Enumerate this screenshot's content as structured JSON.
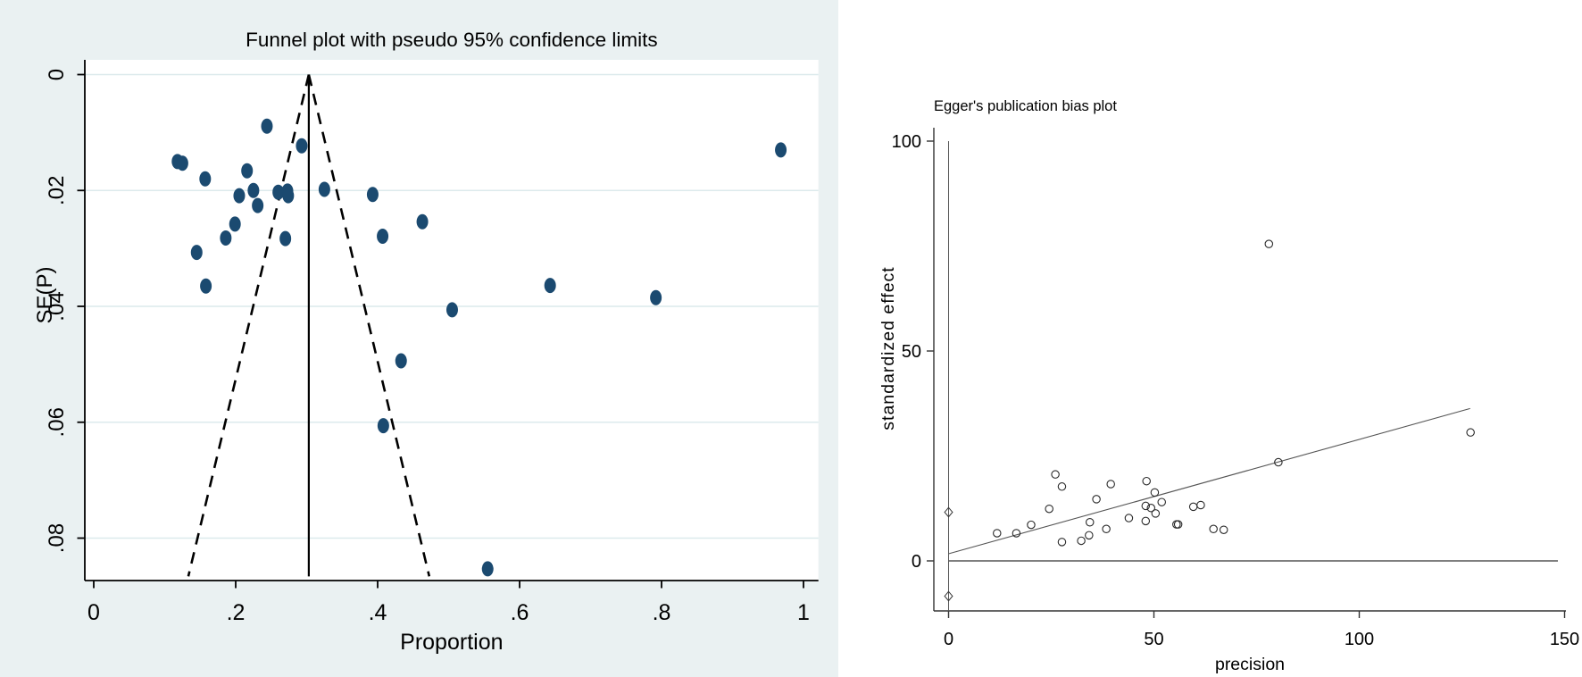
{
  "colors": {
    "panel_bg": "#eaf1f2",
    "plot_bg": "#ffffff",
    "gridline": "#dceaec",
    "marker_fill": "#1b4a70",
    "axis_black": "#000000",
    "spine_gray": "#333333",
    "line_gray": "#555555"
  },
  "chart_data": [
    {
      "id": "funnel",
      "type": "scatter",
      "title": "Funnel plot with pseudo 95% confidence limits",
      "xlabel": "Proportion",
      "ylabel": "SE(P)",
      "x_ticks": [
        0,
        0.2,
        0.4,
        0.6,
        0.8,
        1
      ],
      "x_tick_labels": [
        "0",
        ".2",
        ".4",
        ".6",
        ".8",
        "1"
      ],
      "y_ticks": [
        0,
        0.02,
        0.04,
        0.06,
        0.08
      ],
      "y_tick_labels": [
        "0",
        ".02",
        ".04",
        ".06",
        ".08"
      ],
      "xlim": [
        0,
        1.02
      ],
      "ylim_top_to_bottom": [
        0,
        0.0873
      ],
      "y_axis_reversed": true,
      "grid": true,
      "center_line_x": 0.303,
      "pseudo_ci_multiplier": 1.96,
      "funnel_se_max": 0.0866,
      "points": [
        [
          0.118,
          0.015
        ],
        [
          0.125,
          0.0153
        ],
        [
          0.157,
          0.018
        ],
        [
          0.216,
          0.0166
        ],
        [
          0.205,
          0.0209
        ],
        [
          0.225,
          0.02
        ],
        [
          0.231,
          0.0226
        ],
        [
          0.26,
          0.0203
        ],
        [
          0.273,
          0.0201
        ],
        [
          0.274,
          0.0209
        ],
        [
          0.325,
          0.0198
        ],
        [
          0.199,
          0.0258
        ],
        [
          0.186,
          0.0282
        ],
        [
          0.27,
          0.0283
        ],
        [
          0.293,
          0.0123
        ],
        [
          0.244,
          0.0089
        ],
        [
          0.145,
          0.0307
        ],
        [
          0.158,
          0.0365
        ],
        [
          0.393,
          0.0207
        ],
        [
          0.463,
          0.0254
        ],
        [
          0.407,
          0.0279
        ],
        [
          0.505,
          0.0406
        ],
        [
          0.433,
          0.0494
        ],
        [
          0.408,
          0.0606
        ],
        [
          0.555,
          0.0853
        ],
        [
          0.643,
          0.0364
        ],
        [
          0.792,
          0.0385
        ],
        [
          0.968,
          0.013
        ]
      ]
    },
    {
      "id": "egger",
      "type": "scatter",
      "title": "Egger's publication bias plot",
      "xlabel": "precision",
      "ylabel": "standardized effect",
      "x_ticks": [
        0,
        50,
        100,
        150
      ],
      "x_tick_labels": [
        "0",
        "50",
        "100",
        "150"
      ],
      "y_ticks": [
        0,
        50,
        100
      ],
      "y_tick_labels": [
        "0",
        "50",
        "100"
      ],
      "xlim": [
        -4,
        152
      ],
      "ylim": [
        -12,
        104
      ],
      "grid": false,
      "zero_line_y": 0,
      "vertical_line_x": 0,
      "vertical_line_y_range": [
        -12,
        100
      ],
      "regression_line": {
        "x1": 0,
        "y1": 1.7,
        "x2": 127,
        "y2": 36.3
      },
      "ci_diamonds": [
        [
          0,
          11.6
        ],
        [
          0,
          -8.4
        ]
      ],
      "points": [
        [
          11.8,
          6.6
        ],
        [
          16.5,
          6.6
        ],
        [
          20.1,
          8.6
        ],
        [
          24.5,
          12.4
        ],
        [
          26.0,
          20.6
        ],
        [
          27.6,
          17.7
        ],
        [
          27.6,
          4.5
        ],
        [
          32.3,
          4.8
        ],
        [
          34.2,
          6.1
        ],
        [
          34.4,
          9.2
        ],
        [
          36.0,
          14.7
        ],
        [
          38.4,
          7.6
        ],
        [
          39.5,
          18.3
        ],
        [
          43.9,
          10.2
        ],
        [
          48.2,
          19.0
        ],
        [
          50.2,
          16.3
        ],
        [
          51.9,
          14.0
        ],
        [
          48.0,
          13.1
        ],
        [
          49.3,
          12.6
        ],
        [
          50.4,
          11.3
        ],
        [
          48.0,
          9.5
        ],
        [
          55.5,
          8.7
        ],
        [
          55.9,
          8.7
        ],
        [
          59.6,
          12.9
        ],
        [
          61.4,
          13.3
        ],
        [
          64.5,
          7.6
        ],
        [
          67.0,
          7.4
        ],
        [
          80.3,
          23.5
        ],
        [
          127.1,
          30.6
        ],
        [
          78.0,
          75.5
        ]
      ]
    }
  ]
}
